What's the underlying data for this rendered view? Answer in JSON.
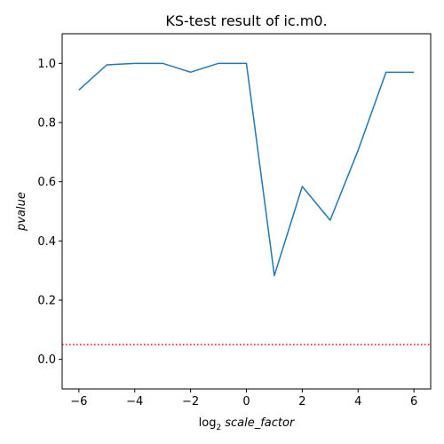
{
  "chart_data": {
    "type": "line",
    "title": "KS-test result of ic.m0.",
    "xlabel_prefix": "log",
    "xlabel_sub": "2",
    "xlabel_var": "scale_factor",
    "ylabel": "pvalue",
    "xlim": [
      -6.6,
      6.6
    ],
    "ylim": [
      -0.1,
      1.1
    ],
    "xticks": [
      -6,
      -4,
      -2,
      0,
      2,
      4,
      6
    ],
    "xtick_labels": [
      "−6",
      "−4",
      "−2",
      "0",
      "2",
      "4",
      "6"
    ],
    "yticks": [
      0.0,
      0.2,
      0.4,
      0.6,
      0.8,
      1.0
    ],
    "ytick_labels": [
      "0.0",
      "0.2",
      "0.4",
      "0.6",
      "0.8",
      "1.0"
    ],
    "grid": false,
    "series": [
      {
        "color": "#1f77b4",
        "x": [
          -6,
          -5,
          -4,
          -3,
          -2,
          -1,
          0,
          1,
          2,
          3,
          4,
          5,
          6
        ],
        "y": [
          0.91,
          0.995,
          1.0,
          1.0,
          0.97,
          1.0,
          1.0,
          0.283,
          0.584,
          0.47,
          0.706,
          0.97,
          0.97
        ]
      }
    ],
    "hline": {
      "y": 0.05,
      "color": "#ff0000",
      "style": "dotted"
    }
  }
}
